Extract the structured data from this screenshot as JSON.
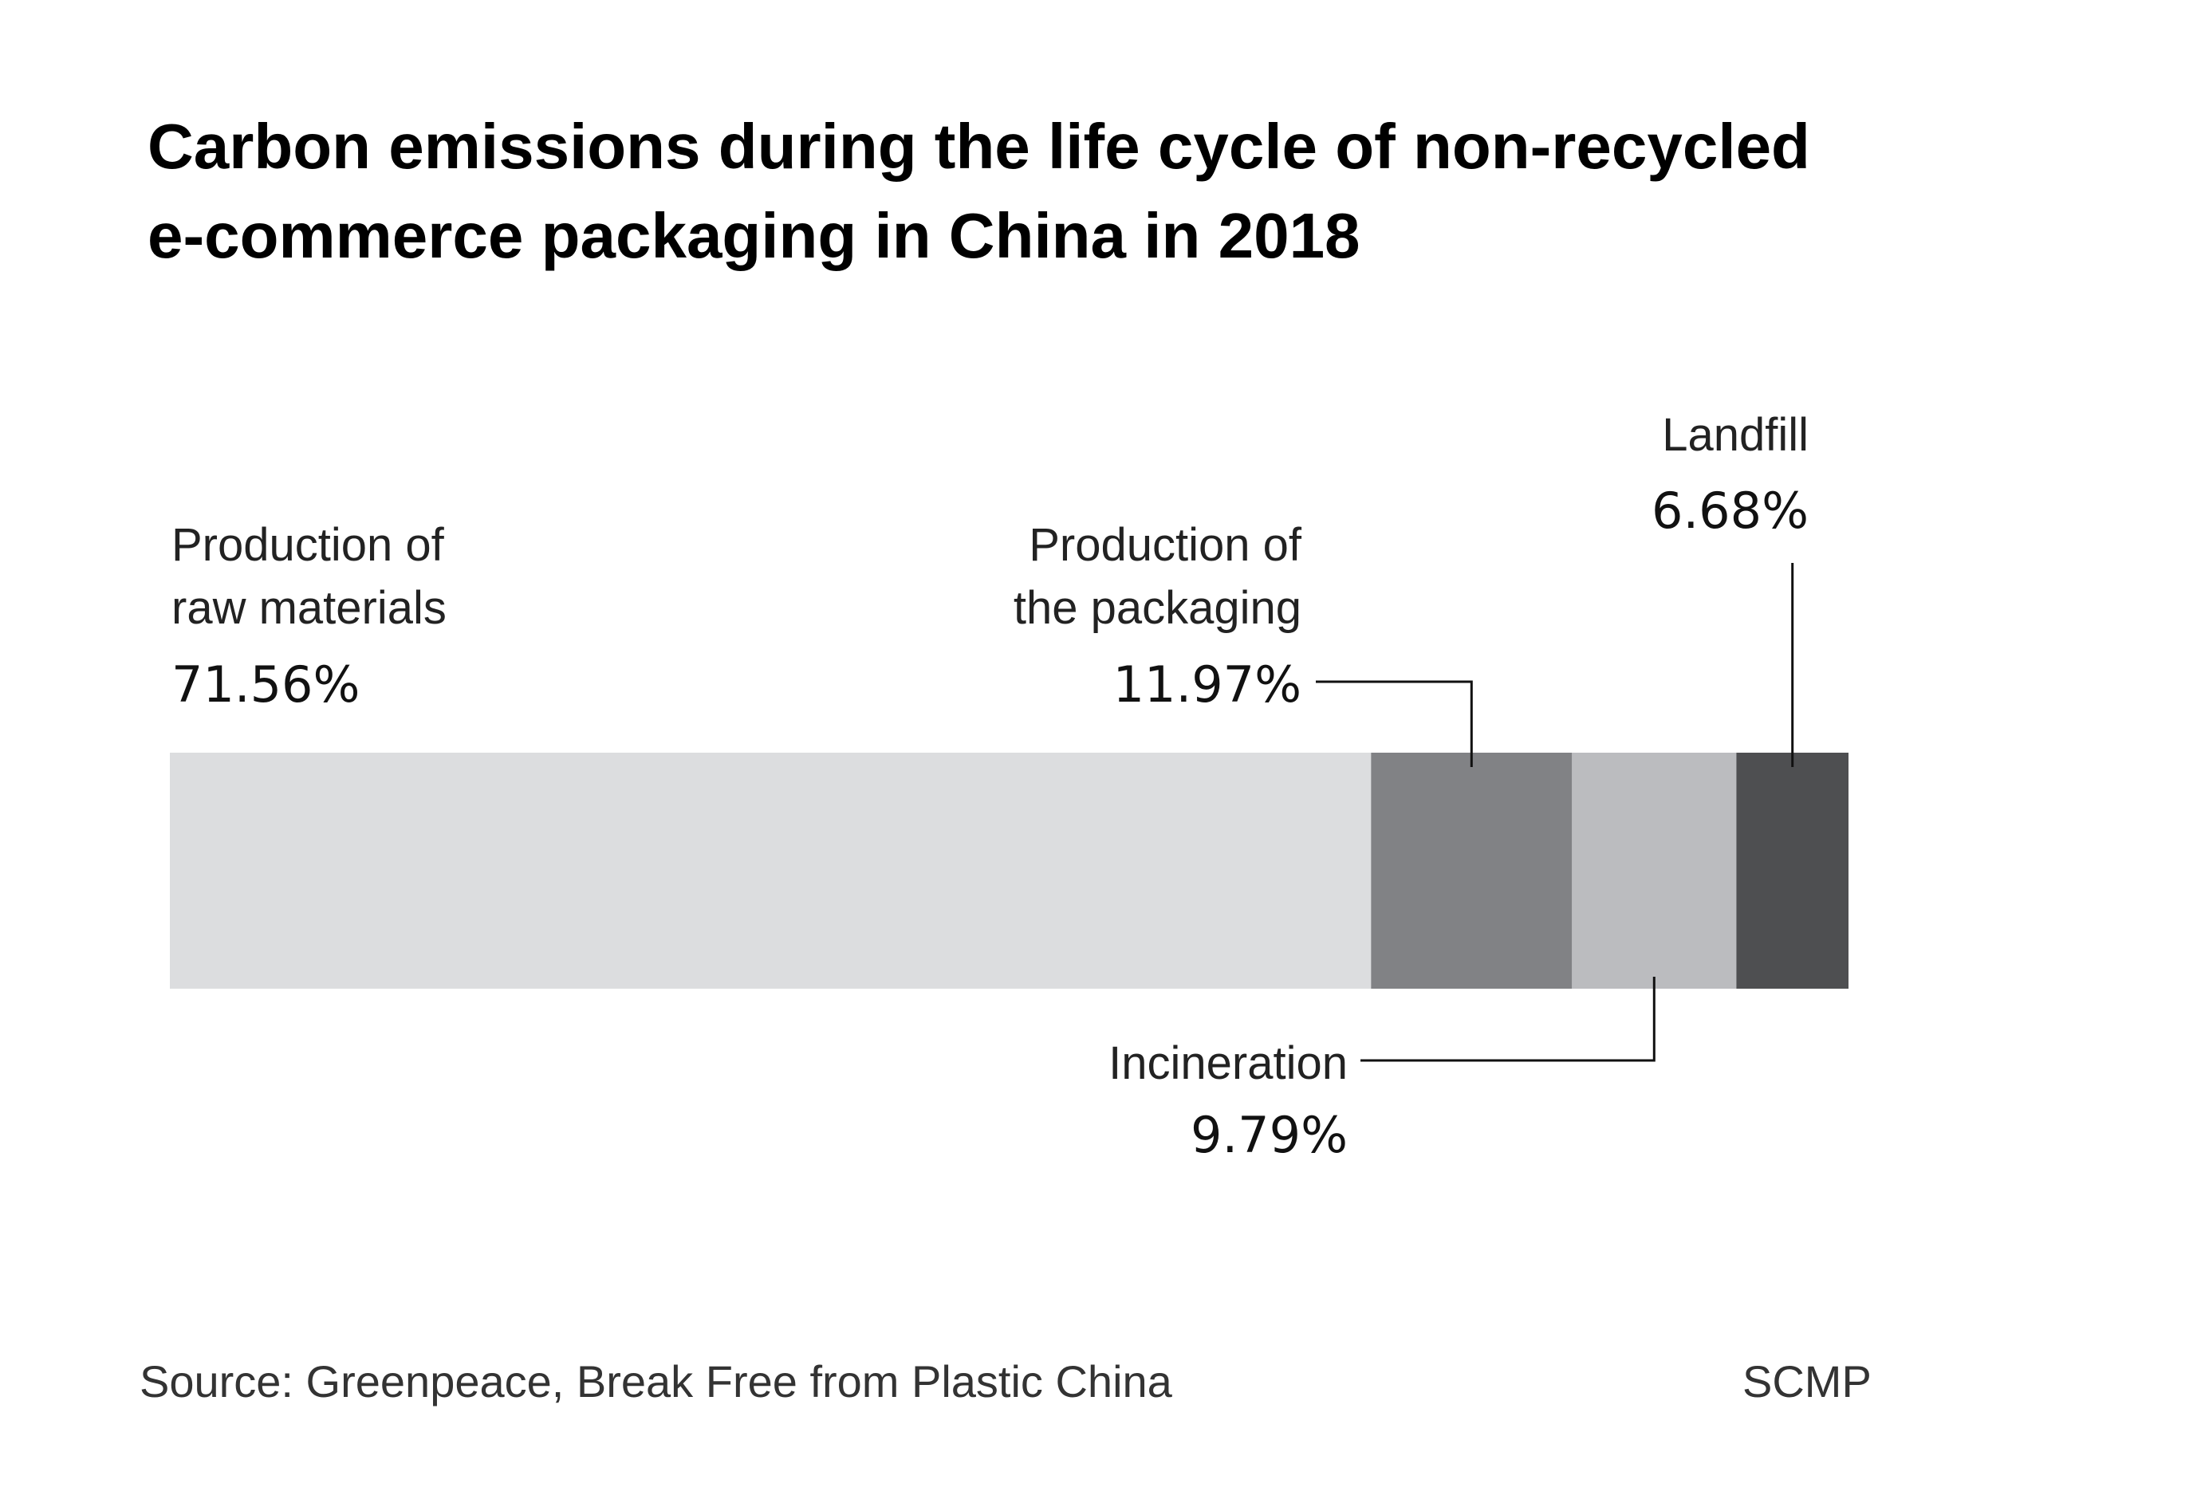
{
  "title_lines": [
    "Carbon emissions during the life cycle of non-recycled",
    "e-commerce packaging in China in 2018"
  ],
  "source": "Source: Greenpeace, Break Free from Plastic China",
  "credit": "SCMP",
  "chart_data": {
    "type": "bar",
    "orientation": "horizontal",
    "stacked": true,
    "title": "Carbon emissions during the life cycle of non-recycled e-commerce packaging in China in 2018",
    "unit": "%",
    "xlim": [
      0,
      100
    ],
    "segments": [
      {
        "label_lines": [
          "Production of",
          "raw materials"
        ],
        "value": 71.56,
        "value_text": "71.56%",
        "color": "#dcdddf"
      },
      {
        "label_lines": [
          "Production of",
          "the packaging"
        ],
        "value": 11.97,
        "value_text": "11.97%",
        "color": "#818285"
      },
      {
        "label_lines": [
          "Incineration"
        ],
        "value": 9.79,
        "value_text": "9.79%",
        "color": "#bbbcbf"
      },
      {
        "label_lines": [
          "Landfill"
        ],
        "value": 6.68,
        "value_text": "6.68%",
        "color": "#4e4f51"
      }
    ]
  }
}
